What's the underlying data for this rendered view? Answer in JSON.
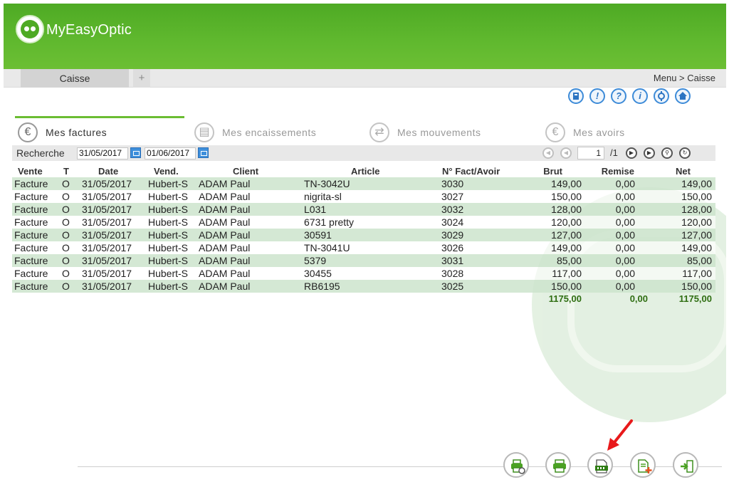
{
  "app": {
    "name": "MyEasyOptic"
  },
  "tabbar": {
    "active_tab": "Caisse",
    "add_label": "+",
    "breadcrumb": "Menu > Caisse"
  },
  "toolbar_icons": [
    "bookmark-icon",
    "alert-icon",
    "help-icon",
    "info-icon",
    "settings-icon",
    "home-icon"
  ],
  "sections": [
    {
      "label": "Mes factures",
      "icon": "euro-icon",
      "active": true
    },
    {
      "label": "Mes encaissements",
      "icon": "register-icon",
      "active": false
    },
    {
      "label": "Mes mouvements",
      "icon": "transfer-icon",
      "active": false
    },
    {
      "label": "Mes avoirs",
      "icon": "euro-icon",
      "active": false
    }
  ],
  "search": {
    "label": "Recherche",
    "date_from": "31/05/2017",
    "date_to": "01/06/2017",
    "page": "1",
    "page_total": "/1"
  },
  "table": {
    "headers": {
      "vente": "Vente",
      "t": "T",
      "date": "Date",
      "vend": "Vend.",
      "client": "Client",
      "article": "Article",
      "fact": "N° Fact/Avoir",
      "brut": "Brut",
      "remise": "Remise",
      "net": "Net"
    },
    "rows": [
      {
        "vente": "Facture",
        "t": "O",
        "date": "31/05/2017",
        "vend": "Hubert-S",
        "client": "ADAM Paul",
        "article": "TN-3042U",
        "fact": "3030",
        "brut": "149,00",
        "remise": "0,00",
        "net": "149,00"
      },
      {
        "vente": "Facture",
        "t": "O",
        "date": "31/05/2017",
        "vend": "Hubert-S",
        "client": "ADAM Paul",
        "article": "nigrita-sl",
        "fact": "3027",
        "brut": "150,00",
        "remise": "0,00",
        "net": "150,00"
      },
      {
        "vente": "Facture",
        "t": "O",
        "date": "31/05/2017",
        "vend": "Hubert-S",
        "client": "ADAM Paul",
        "article": "L031",
        "fact": "3032",
        "brut": "128,00",
        "remise": "0,00",
        "net": "128,00"
      },
      {
        "vente": "Facture",
        "t": "O",
        "date": "31/05/2017",
        "vend": "Hubert-S",
        "client": "ADAM Paul",
        "article": "6731 pretty",
        "fact": "3024",
        "brut": "120,00",
        "remise": "0,00",
        "net": "120,00"
      },
      {
        "vente": "Facture",
        "t": "O",
        "date": "31/05/2017",
        "vend": "Hubert-S",
        "client": "ADAM Paul",
        "article": "30591",
        "fact": "3029",
        "brut": "127,00",
        "remise": "0,00",
        "net": "127,00"
      },
      {
        "vente": "Facture",
        "t": "O",
        "date": "31/05/2017",
        "vend": "Hubert-S",
        "client": "ADAM Paul",
        "article": "TN-3041U",
        "fact": "3026",
        "brut": "149,00",
        "remise": "0,00",
        "net": "149,00"
      },
      {
        "vente": "Facture",
        "t": "O",
        "date": "31/05/2017",
        "vend": "Hubert-S",
        "client": "ADAM Paul",
        "article": "5379",
        "fact": "3031",
        "brut": "85,00",
        "remise": "0,00",
        "net": "85,00"
      },
      {
        "vente": "Facture",
        "t": "O",
        "date": "31/05/2017",
        "vend": "Hubert-S",
        "client": "ADAM Paul",
        "article": "30455",
        "fact": "3028",
        "brut": "117,00",
        "remise": "0,00",
        "net": "117,00"
      },
      {
        "vente": "Facture",
        "t": "O",
        "date": "31/05/2017",
        "vend": "Hubert-S",
        "client": "ADAM Paul",
        "article": "RB6195",
        "fact": "3025",
        "brut": "150,00",
        "remise": "0,00",
        "net": "150,00"
      }
    ],
    "totals": {
      "brut": "1175,00",
      "remise": "0,00",
      "net": "1175,00"
    }
  },
  "actions": [
    "print-timer-icon",
    "print-icon",
    "csv-export-icon",
    "add-document-icon",
    "exit-icon"
  ],
  "colors": {
    "brand_green": "#5fb82e",
    "accent_blue": "#3d8bd8",
    "row_green": "#cde4cd",
    "arrow_red": "#e8191b"
  }
}
